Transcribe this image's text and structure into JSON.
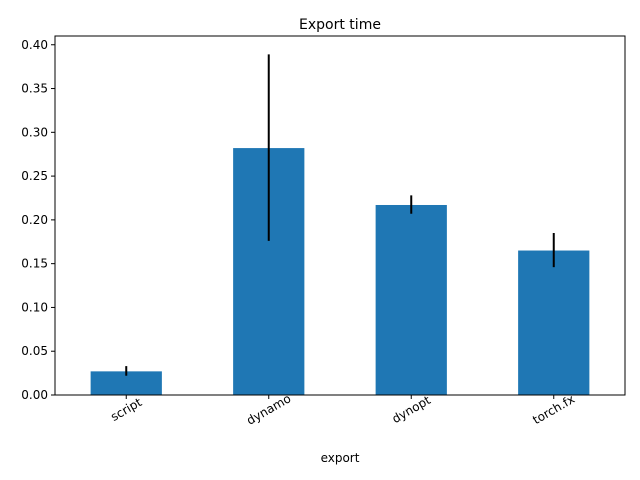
{
  "chart_data": {
    "type": "bar",
    "title": "Export time",
    "xlabel": "export",
    "ylabel": "",
    "categories": [
      "script",
      "dynamo",
      "dynopt",
      "torch.fx"
    ],
    "values": [
      0.027,
      0.282,
      0.217,
      0.165
    ],
    "error_low": [
      0.022,
      0.176,
      0.207,
      0.146
    ],
    "error_high": [
      0.033,
      0.389,
      0.228,
      0.185
    ],
    "ylim": [
      0,
      0.41
    ],
    "yticks": [
      0.0,
      0.05,
      0.1,
      0.15,
      0.2,
      0.25,
      0.3,
      0.35,
      0.4
    ],
    "ytick_labels": [
      "0.00",
      "0.05",
      "0.10",
      "0.15",
      "0.20",
      "0.25",
      "0.30",
      "0.35",
      "0.40"
    ],
    "bar_color": "#1f77b4",
    "error_color": "#000000",
    "grid": false,
    "legend": "none",
    "xtick_rotation_deg": 30
  }
}
